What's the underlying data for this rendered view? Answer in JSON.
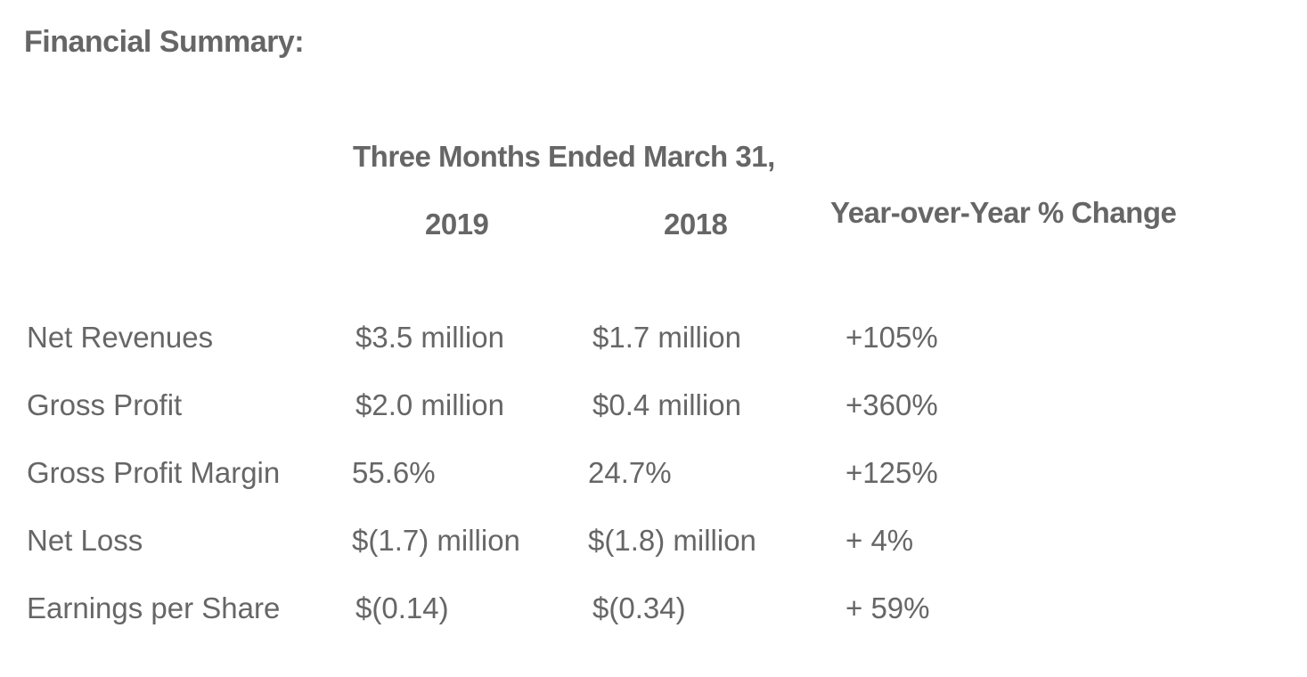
{
  "summary": {
    "title": "Financial Summary:",
    "period_header": "Three Months Ended March 31,",
    "col_2019": "2019",
    "col_2018": "2018",
    "col_change": "Year-over-Year % Change",
    "rows": [
      {
        "label": "Net Revenues",
        "v2019": "$3.5 million",
        "v2018": "$1.7 million",
        "change": "+105%"
      },
      {
        "label": "Gross Profit",
        "v2019": "$2.0 million",
        "v2018": "$0.4 million",
        "change": "+360%"
      },
      {
        "label": "Gross Profit Margin",
        "v2019": "55.6%",
        "v2018": "24.7%",
        "change": "+125%"
      },
      {
        "label": "Net Loss",
        "v2019": "$(1.7) million",
        "v2018": "$(1.8) million",
        "change": "+ 4%"
      },
      {
        "label": "Earnings per Share",
        "v2019": "$(0.14)",
        "v2018": "$(0.34)",
        "change": "+ 59%"
      }
    ]
  }
}
